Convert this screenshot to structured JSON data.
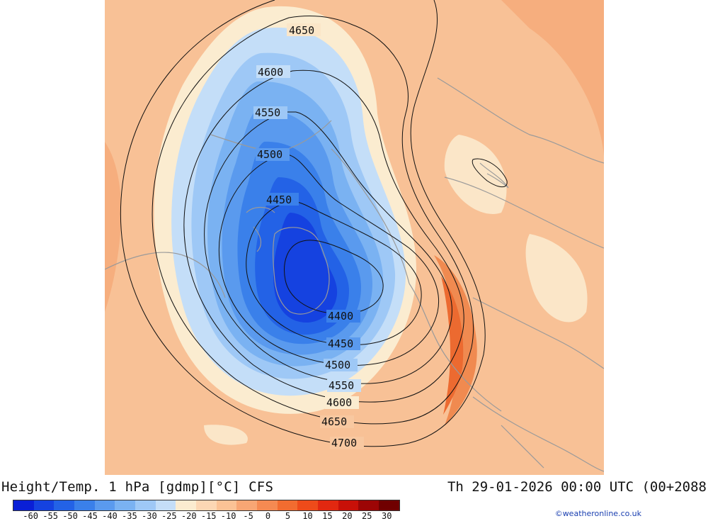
{
  "footer": {
    "title": "Height/Temp. 1 hPa [gdmp][°C] CFS",
    "date": "Th 29-01-2026 00:00 UTC (00+2088"
  },
  "credit": "©weatheronline.co.uk",
  "colorbar": {
    "colors": [
      "#0a1fd6",
      "#1542e0",
      "#2362e6",
      "#3a80ea",
      "#5a9aee",
      "#7ab2f2",
      "#9ec8f6",
      "#c4def8",
      "#fbecd0",
      "#fcd7b4",
      "#fbc295",
      "#f8a674",
      "#f58a52",
      "#f26c30",
      "#ee4b1a",
      "#e22810",
      "#c81008",
      "#9c0505",
      "#700000"
    ],
    "tick_labels": [
      "-60",
      "-55",
      "-50",
      "-45",
      "-40",
      "-35",
      "-30",
      "-25",
      "-20",
      "-15",
      "-10",
      "-5",
      "0",
      "5",
      "10",
      "15",
      "20",
      "25",
      "30"
    ]
  },
  "contour_labels": {
    "l4650_top": "4650",
    "l4600_top": "4600",
    "l4550_top": "4550",
    "l4500_top": "4500",
    "l4450_top": "4450",
    "l4400": "4400",
    "l4450_bot": "4450",
    "l4500_bot": "4500",
    "l4550_bot": "4550",
    "l4600_bot": "4600",
    "l4650_bot": "4650",
    "l4700": "4700"
  }
}
